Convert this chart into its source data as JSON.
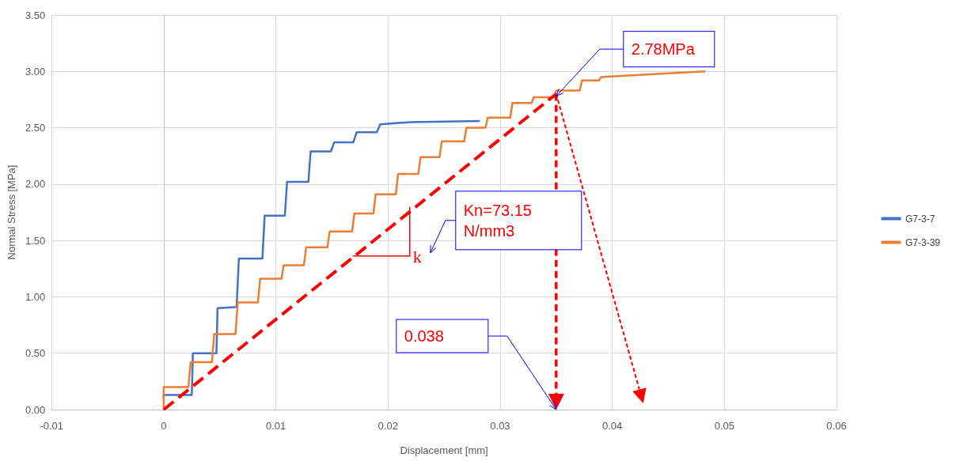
{
  "chart_data": {
    "type": "line",
    "xlabel": "Displacement [mm]",
    "ylabel": "Normal Stress [MPa]",
    "xlim": [
      -0.01,
      0.06
    ],
    "xticks": [
      -0.01,
      0,
      0.01,
      0.02,
      0.03,
      0.04,
      0.05,
      0.06
    ],
    "ylim": [
      0,
      3.5
    ],
    "yticks": [
      {
        "value": 0,
        "label": "0.00"
      },
      {
        "value": 0.5,
        "label": "0.50"
      },
      {
        "value": 1,
        "label": "1.00"
      },
      {
        "value": 1.5,
        "label": "1.50"
      },
      {
        "value": 2,
        "label": "2.00"
      },
      {
        "value": 2.5,
        "label": "2.50"
      },
      {
        "value": 3,
        "label": "3.00"
      },
      {
        "value": 3.5,
        "label": "3.50"
      }
    ],
    "grid": true,
    "legend": "right",
    "marker": "none",
    "line_style": "solid",
    "series": [
      {
        "name": "G7-3-7",
        "color": "#4472c4",
        "x": [
          0,
          0,
          0.0025,
          0.0026,
          0.0047,
          0.0048,
          0.0065,
          0.0067,
          0.0088,
          0.009,
          0.0108,
          0.011,
          0.0129,
          0.0131,
          0.0149,
          0.0152,
          0.0169,
          0.0172,
          0.019,
          0.0193,
          0.022,
          0.0282
        ],
        "values": [
          0.1,
          0.13,
          0.13,
          0.5,
          0.5,
          0.9,
          0.91,
          1.34,
          1.34,
          1.72,
          1.72,
          2.02,
          2.02,
          2.29,
          2.29,
          2.37,
          2.37,
          2.46,
          2.46,
          2.53,
          2.55,
          2.56
        ]
      },
      {
        "name": "G7-3-39",
        "color": "#ed7d31",
        "x": [
          0,
          0,
          0.0022,
          0.0024,
          0.0043,
          0.0045,
          0.0064,
          0.0066,
          0.0084,
          0.0086,
          0.0105,
          0.0107,
          0.0125,
          0.0127,
          0.0146,
          0.0148,
          0.0168,
          0.017,
          0.0187,
          0.0189,
          0.0207,
          0.0209,
          0.0227,
          0.0229,
          0.0246,
          0.0248,
          0.0268,
          0.027,
          0.0287,
          0.0289,
          0.0309,
          0.0311,
          0.0328,
          0.033,
          0.0348,
          0.035,
          0.0371,
          0.0373,
          0.0388,
          0.039,
          0.0483
        ],
        "values": [
          0,
          0.2,
          0.2,
          0.42,
          0.42,
          0.67,
          0.67,
          0.95,
          0.95,
          1.16,
          1.16,
          1.28,
          1.28,
          1.44,
          1.44,
          1.58,
          1.58,
          1.74,
          1.74,
          1.91,
          1.91,
          2.09,
          2.09,
          2.24,
          2.24,
          2.38,
          2.38,
          2.5,
          2.5,
          2.59,
          2.59,
          2.72,
          2.72,
          2.77,
          2.77,
          2.83,
          2.83,
          2.92,
          2.92,
          2.95,
          3.0
        ]
      },
      {
        "type": "line",
        "color": "#ff0000",
        "line_style": "dashed",
        "x": [
          0,
          0.035
        ],
        "values": [
          0,
          2.8
        ]
      }
    ],
    "annotations": [
      {
        "text": "2.78MPa",
        "x": 0.035,
        "y": 2.78
      },
      "Kn=73.15\nN/mm3",
      "k",
      "0.038"
    ]
  }
}
